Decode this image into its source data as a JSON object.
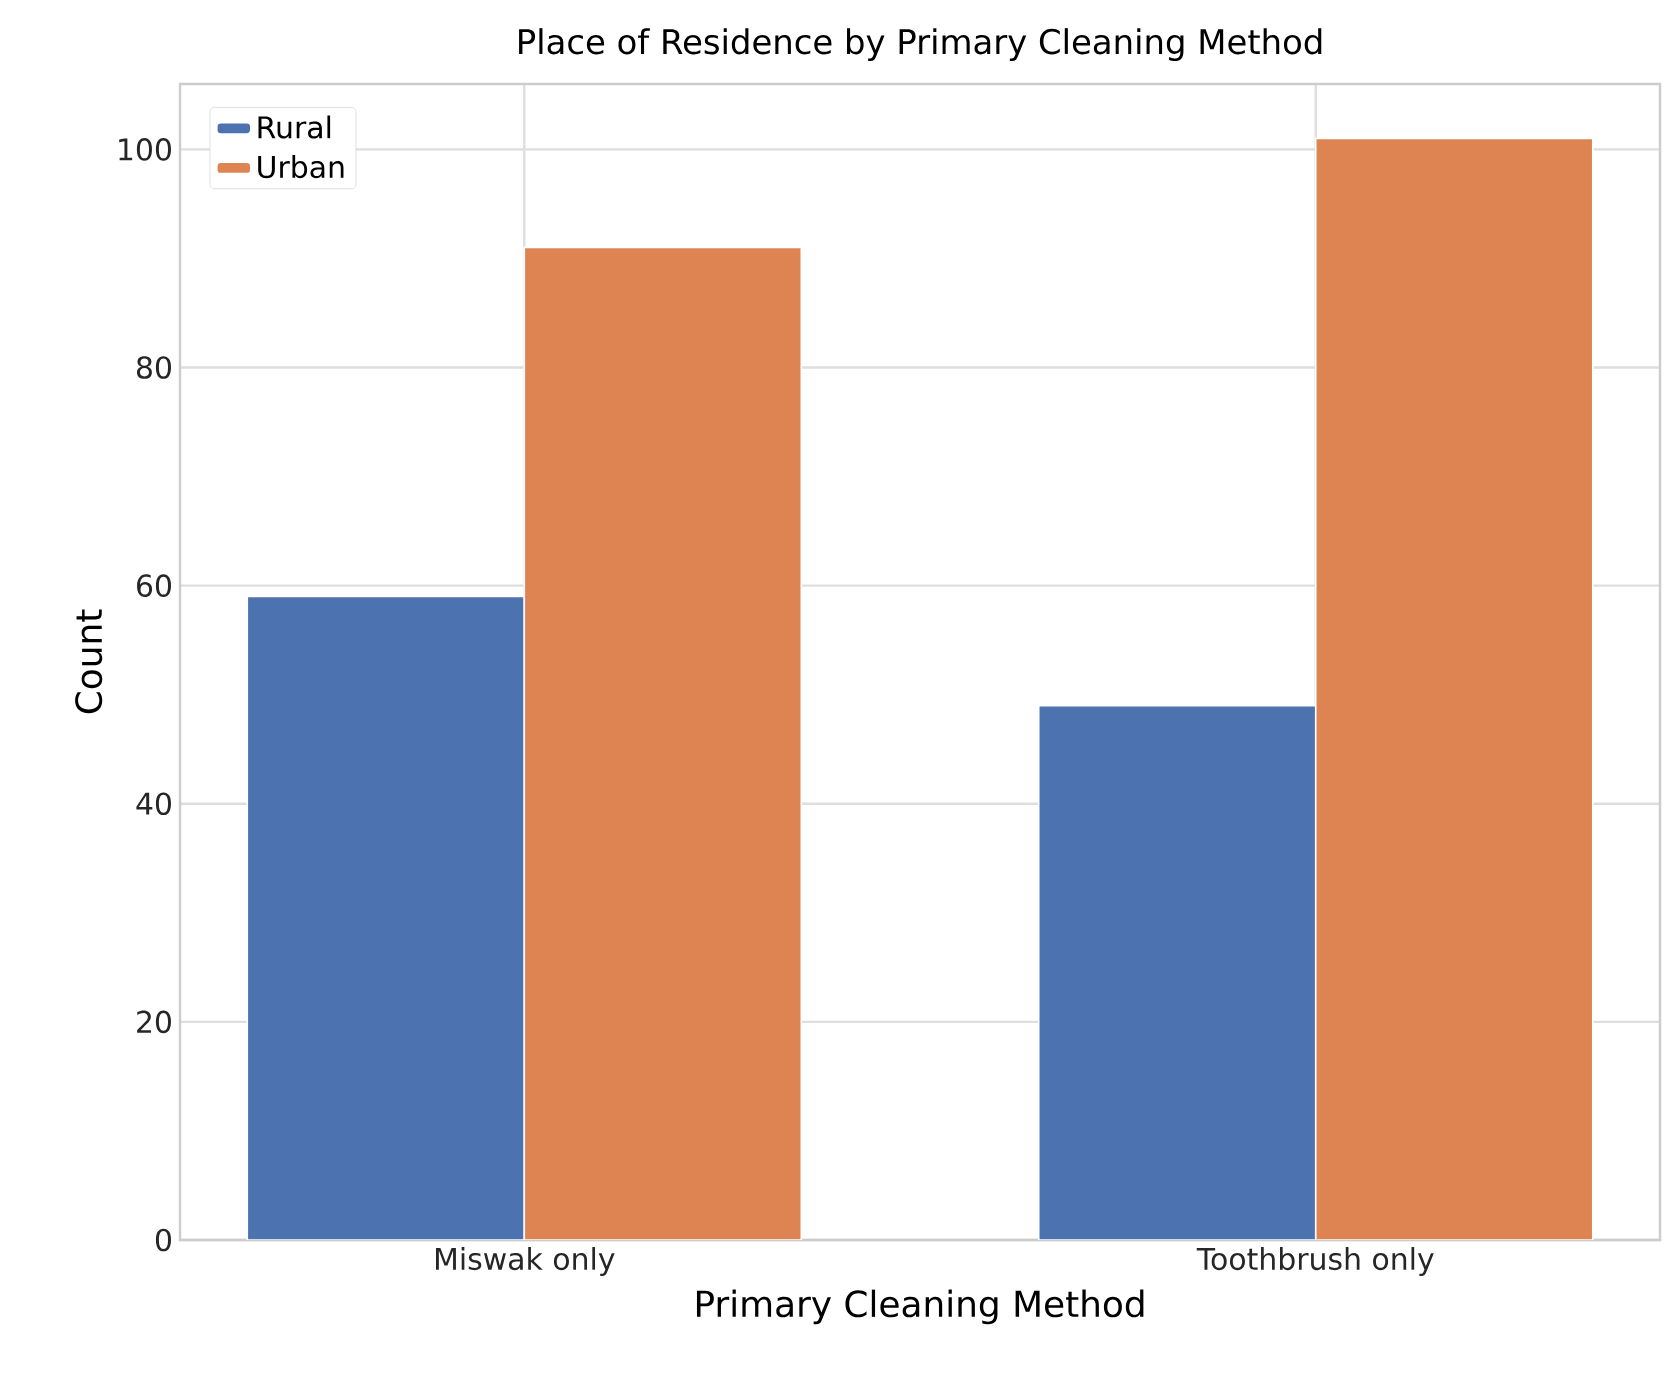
{
  "chart_data": {
    "type": "bar",
    "title": "Place of Residence by Primary Cleaning Method",
    "xlabel": "Primary Cleaning Method",
    "ylabel": "Count",
    "categories": [
      "Miswak only",
      "Toothbrush only"
    ],
    "series": [
      {
        "name": "Rural",
        "color": "#4c72b0",
        "values": [
          59,
          49
        ]
      },
      {
        "name": "Urban",
        "color": "#dd8452",
        "values": [
          91,
          101
        ]
      }
    ],
    "ylim": [
      0,
      106
    ],
    "yticks": [
      0,
      20,
      40,
      60,
      80,
      100
    ],
    "grid": true,
    "legend": "top left"
  }
}
